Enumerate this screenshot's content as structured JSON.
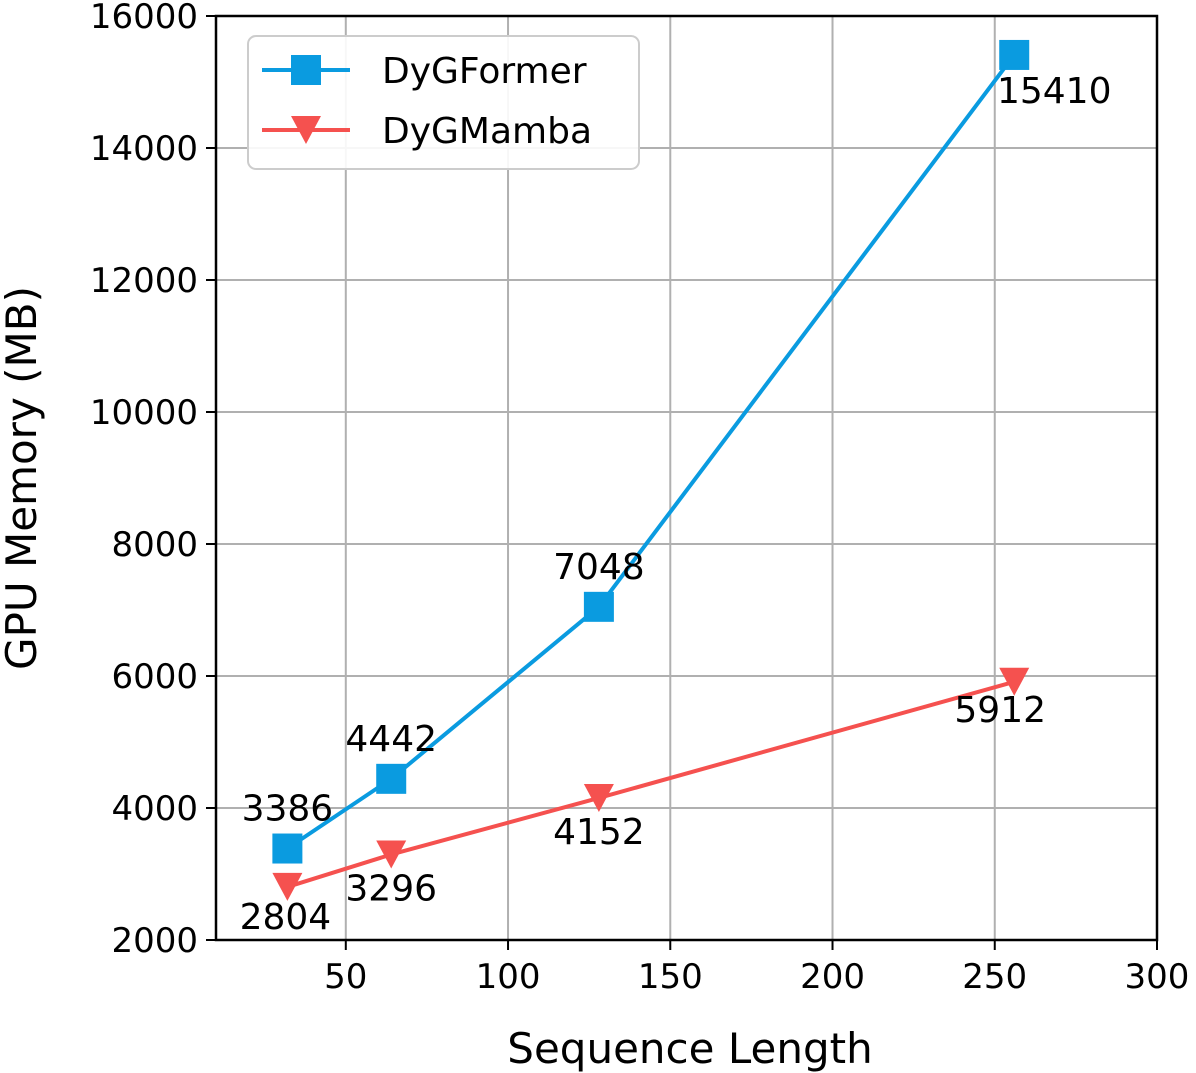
{
  "chart_data": {
    "type": "line",
    "xlabel": "Sequence Length",
    "ylabel": "GPU Memory (MB)",
    "xlim": [
      10,
      300
    ],
    "ylim": [
      2000,
      16000
    ],
    "xticks": [
      50,
      100,
      150,
      200,
      250,
      300
    ],
    "yticks": [
      2000,
      4000,
      6000,
      8000,
      10000,
      12000,
      14000,
      16000
    ],
    "grid": true,
    "legend_position": "top-left",
    "series": [
      {
        "name": "DyGFormer",
        "color": "#0a9be0",
        "marker": "square",
        "x": [
          32,
          64,
          128,
          256
        ],
        "y": [
          3386,
          4442,
          7048,
          15410
        ],
        "labels": [
          "3386",
          "4442",
          "7048",
          "15410"
        ]
      },
      {
        "name": "DyGMamba",
        "color": "#f5514f",
        "marker": "triangle-down",
        "x": [
          32,
          64,
          128,
          256
        ],
        "y": [
          2804,
          3296,
          4152,
          5912
        ],
        "labels": [
          "2804",
          "3296",
          "4152",
          "5912"
        ]
      }
    ]
  }
}
